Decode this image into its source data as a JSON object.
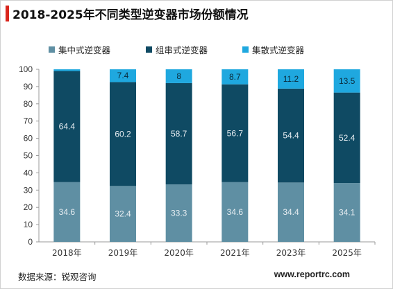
{
  "title": "2018-2025年不同类型逆变器市场份额情况",
  "colors": {
    "accent": "#d9251c"
  },
  "chart_data": {
    "type": "bar",
    "stacked": true,
    "categories": [
      "2018年",
      "2019年",
      "2020年",
      "2021年",
      "2023年",
      "2025年"
    ],
    "series": [
      {
        "name": "集中式逆变器",
        "color": "#5f8fa3",
        "values": [
          34.6,
          32.4,
          33.3,
          34.6,
          34.4,
          34.1
        ]
      },
      {
        "name": "组串式逆变器",
        "color": "#0f4a63",
        "values": [
          64.4,
          60.2,
          58.7,
          56.7,
          54.4,
          52.4
        ]
      },
      {
        "name": "集散式逆变器",
        "color": "#1fa8df",
        "values": [
          1.0,
          7.4,
          8,
          8.7,
          11.2,
          13.5
        ]
      }
    ],
    "data_labels": [
      [
        "34.6",
        "32.4",
        "33.3",
        "34.6",
        "34.4",
        "34.1"
      ],
      [
        "64.4",
        "60.2",
        "58.7",
        "56.7",
        "54.4",
        "52.4"
      ],
      [
        "",
        "7.4",
        "8",
        "8.7",
        "11.2",
        "13.5"
      ]
    ],
    "yticks": [
      "0",
      "10",
      "20",
      "30",
      "40",
      "50",
      "60",
      "70",
      "80",
      "90",
      "100"
    ],
    "ylim": [
      0,
      100
    ],
    "grid": false,
    "legend_position": "top"
  },
  "footer": {
    "source": "数据来源：锐观咨询",
    "website": "www.reportrc.com"
  }
}
